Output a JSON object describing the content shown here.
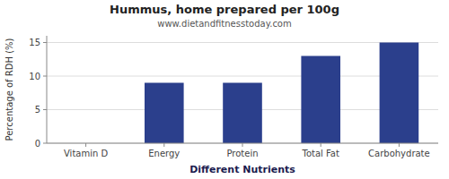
{
  "chart_data": {
    "type": "bar",
    "title": "Hummus, home prepared per 100g",
    "subtitle": "www.dietandfitnesstoday.com",
    "xlabel": "Different Nutrients",
    "ylabel": "Percentage of RDH (%)",
    "categories": [
      "Vitamin D",
      "Energy",
      "Protein",
      "Total Fat",
      "Carbohydrate"
    ],
    "values": [
      0,
      9,
      9,
      13,
      15
    ],
    "color": "#2b3f8c",
    "ylim": [
      0,
      16
    ],
    "yticks": [
      0,
      5,
      10,
      15
    ],
    "grid": true
  }
}
